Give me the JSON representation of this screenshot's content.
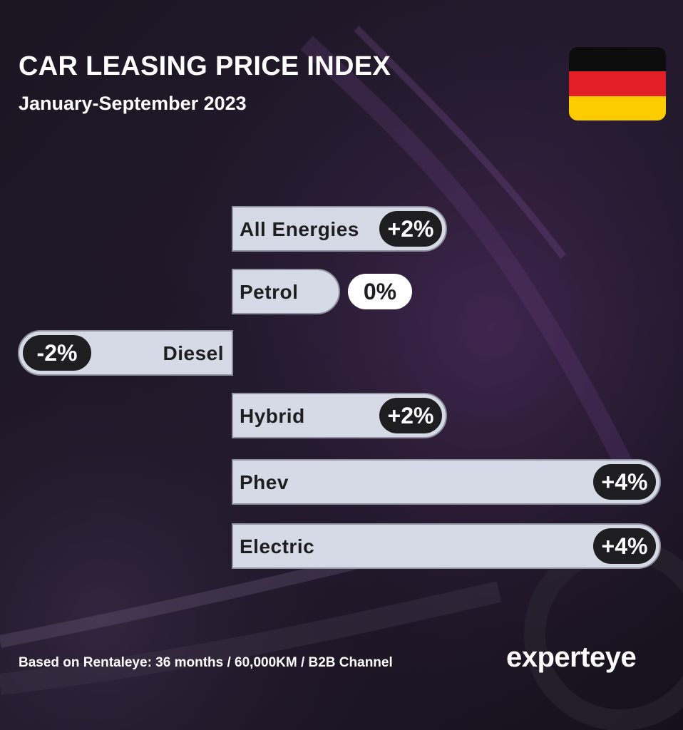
{
  "header": {
    "title": "CAR LEASING PRICE INDEX",
    "subtitle": "January-September 2023"
  },
  "flag": {
    "name": "germany-flag",
    "colors": [
      "#0d0d0d",
      "#e11f25",
      "#fdcc00"
    ]
  },
  "colors": {
    "bar_fill": "#d5dae6",
    "bar_border": "#8d929c",
    "pill_dark": "#1e1e20",
    "pill_light": "#ffffff",
    "text_dark": "#1e1e20",
    "background": "#121017"
  },
  "chart_data": {
    "type": "bar",
    "orientation": "horizontal",
    "categories": [
      "All Energies",
      "Petrol",
      "Diesel",
      "Hybrid",
      "Phev",
      "Electric"
    ],
    "values": [
      2,
      0,
      -2,
      2,
      4,
      4
    ],
    "value_labels": [
      "+2%",
      "0%",
      "-2%",
      "+2%",
      "+4%",
      "+4%"
    ],
    "unit": "%"
  },
  "footer": {
    "note": "Based on Rentaleye: 36 months / 60,000KM / B2B Channel",
    "logo_text": "experteye"
  }
}
